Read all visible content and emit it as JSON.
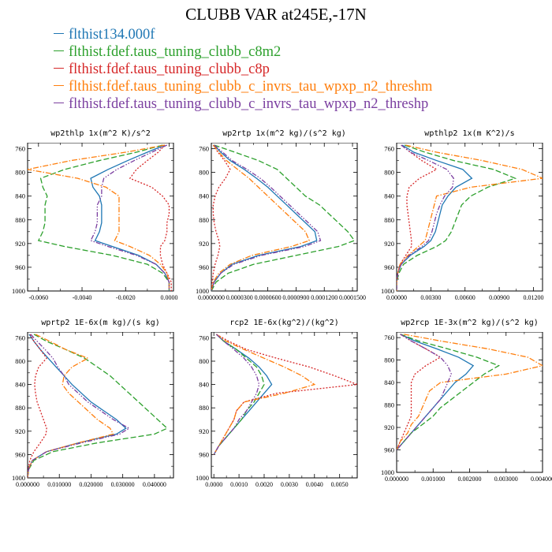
{
  "figure": {
    "title": "CLUBB VAR at245E,-17N"
  },
  "legend": [
    {
      "label": "flthist134.000f",
      "color": "#1f77b4",
      "dash": "solid"
    },
    {
      "label": "flthist.fdef.taus_tuning_clubb_c8m2",
      "color": "#2ca02c",
      "dash": "dashed"
    },
    {
      "label": "flthist.fdef.taus_tuning_clubb_c8p",
      "color": "#d62728",
      "dash": "dotted"
    },
    {
      "label": "flthist.fdef.taus_tuning_clubb_c_invrs_tau_wpxp_n2_threshm",
      "color": "#ff7f0e",
      "dash": "dashdot"
    },
    {
      "label": "flthist.fdef.taus_tuning_clubb_c_invrs_tau_wpxp_n2_threshp",
      "color": "#7b3fa0",
      "dash": "dashdot2"
    }
  ],
  "chart_data": [
    {
      "type": "line",
      "title": "wp2thlp  1x(m^2 K)/s^2",
      "xlim": [
        -0.0065,
        0.0002
      ],
      "xticks": [
        -0.006,
        -0.004,
        -0.002,
        0.0
      ],
      "xtick_labels": [
        "-0.0060",
        "-0.0040",
        "-0.0020",
        "0.0000"
      ],
      "ylim": [
        1000,
        750
      ],
      "yticks": [
        760,
        800,
        840,
        880,
        920,
        960,
        1000
      ],
      "ytick_labels": [
        "760",
        "800",
        "840",
        "880",
        "920",
        "960",
        "1000"
      ],
      "y": [
        754,
        766,
        780,
        795,
        810,
        825,
        840,
        855,
        870,
        885,
        900,
        915,
        925,
        940,
        955,
        970,
        985,
        1000
      ],
      "series": [
        {
          "name": "flthist134.000f",
          "values": [
            -0.0002,
            -0.001,
            -0.0019,
            -0.0028,
            -0.0036,
            -0.0035,
            -0.0032,
            -0.0031,
            -0.0031,
            -0.0031,
            -0.0032,
            -0.0034,
            -0.0026,
            -0.0014,
            -0.0006,
            -0.0002,
            0.0,
            0.0
          ]
        },
        {
          "name": "flthist.fdef.taus_tuning_clubb_c8m2",
          "values": [
            -0.0003,
            -0.0015,
            -0.0032,
            -0.0048,
            -0.0059,
            -0.0058,
            -0.0056,
            -0.0057,
            -0.0057,
            -0.0057,
            -0.0058,
            -0.006,
            -0.0048,
            -0.0026,
            -0.001,
            -0.0003,
            0.0,
            0.0
          ]
        },
        {
          "name": "flthist.fdef.taus_tuning_clubb_c8p",
          "values": [
            -0.0002,
            -0.0005,
            -0.001,
            -0.0015,
            -0.0018,
            -0.0008,
            -0.0003,
            0.0,
            0.0,
            -0.0001,
            -0.0001,
            -0.0002,
            -0.0004,
            -0.0004,
            -0.0003,
            -0.0001,
            0.0001,
            0.0001
          ]
        },
        {
          "name": "flthist.fdef.taus_tuning_clubb_c_invrs_tau_wpxp_n2_threshm",
          "values": [
            -0.0002,
            -0.002,
            -0.0045,
            -0.0065,
            -0.0042,
            -0.0029,
            -0.0023,
            -0.0023,
            -0.0023,
            -0.0023,
            -0.0023,
            -0.0025,
            -0.0018,
            -0.0009,
            -0.0004,
            -0.0001,
            0.0,
            0.0
          ]
        },
        {
          "name": "flthist.fdef.taus_tuning_clubb_c_invrs_tau_wpxp_n2_threshp",
          "values": [
            -0.0001,
            -0.0008,
            -0.0016,
            -0.0024,
            -0.003,
            -0.0031,
            -0.0031,
            -0.0033,
            -0.0033,
            -0.0033,
            -0.0034,
            -0.0036,
            -0.0028,
            -0.0015,
            -0.0006,
            -0.0002,
            0.0,
            0.0
          ]
        }
      ]
    },
    {
      "type": "line",
      "title": "wp2rtp  1x(m^2 kg)/(s^2 kg)",
      "xlim": [
        0.0,
        0.000155
      ],
      "xticks": [
        0.0,
        3e-05,
        6e-05,
        9e-05,
        0.00012,
        0.00015
      ],
      "xtick_labels": [
        "0.0000000",
        "0.0000300",
        "0.0000600",
        "0.0000900",
        "0.0001200",
        "0.0001500"
      ],
      "ylim": [
        1000,
        750
      ],
      "yticks": [
        760,
        800,
        840,
        880,
        920,
        960,
        1000
      ],
      "ytick_labels": [
        "760",
        "800",
        "840",
        "880",
        "920",
        "960",
        "1000"
      ],
      "y": [
        754,
        766,
        780,
        795,
        810,
        825,
        840,
        855,
        870,
        885,
        900,
        915,
        925,
        940,
        955,
        970,
        985,
        1000
      ],
      "series": [
        {
          "name": "flthist134.000f",
          "values": [
            3e-06,
            1e-05,
            2e-05,
            3.5e-05,
            4.8e-05,
            6e-05,
            7e-05,
            8e-05,
            9e-05,
            0.0001,
            0.00011,
            0.000112,
            9.5e-05,
            5e-05,
            2.2e-05,
            1e-05,
            3e-06,
            0.0
          ]
        },
        {
          "name": "flthist.fdef.taus_tuning_clubb_c8m2",
          "values": [
            3e-06,
            2.5e-05,
            5e-05,
            7e-05,
            8e-05,
            9e-05,
            0.0001,
            0.000115,
            0.000125,
            0.000135,
            0.000145,
            0.000152,
            0.000135,
            9e-05,
            4.5e-05,
            1.8e-05,
            5e-06,
            0.0
          ]
        },
        {
          "name": "flthist.fdef.taus_tuning_clubb_c8p",
          "values": [
            2e-06,
            7e-06,
            1.4e-05,
            2e-05,
            1.5e-05,
            8e-06,
            4e-06,
            2e-06,
            2e-06,
            3e-06,
            5e-06,
            8e-06,
            9e-06,
            7e-06,
            4e-06,
            2e-06,
            1e-06,
            0.0
          ]
        },
        {
          "name": "flthist.fdef.taus_tuning_clubb_c_invrs_tau_wpxp_n2_threshm",
          "values": [
            2e-06,
            8e-06,
            1.6e-05,
            2.8e-05,
            4e-05,
            5e-05,
            6e-05,
            7e-05,
            8e-05,
            9e-05,
            0.0001,
            0.000104,
            8.5e-05,
            4.3e-05,
            2e-05,
            8e-06,
            2e-06,
            0.0
          ]
        },
        {
          "name": "flthist.fdef.taus_tuning_clubb_c_invrs_tau_wpxp_n2_threshp",
          "values": [
            3e-06,
            1.2e-05,
            2.2e-05,
            3.8e-05,
            5.2e-05,
            6.3e-05,
            7.3e-05,
            8.3e-05,
            9.3e-05,
            0.000103,
            0.000113,
            0.000116,
            9.9e-05,
            5.3e-05,
            2.4e-05,
            1e-05,
            3e-06,
            0.0
          ]
        }
      ]
    },
    {
      "type": "line",
      "title": "wpthlp2  1x(m K^2)/s",
      "xlim": [
        0.0,
        0.0128
      ],
      "xticks": [
        0.0,
        0.003,
        0.006,
        0.009,
        0.012
      ],
      "xtick_labels": [
        "0.00000",
        "0.00300",
        "0.00600",
        "0.00900",
        "0.01200"
      ],
      "ylim": [
        1000,
        750
      ],
      "yticks": [
        760,
        800,
        840,
        880,
        920,
        960,
        1000
      ],
      "ytick_labels": [
        "760",
        "800",
        "840",
        "880",
        "920",
        "960",
        "1000"
      ],
      "y": [
        754,
        766,
        780,
        795,
        810,
        825,
        840,
        855,
        870,
        885,
        900,
        915,
        925,
        940,
        955,
        970,
        985,
        1000
      ],
      "series": [
        {
          "name": "flthist134.000f",
          "values": [
            0.0005,
            0.0015,
            0.0035,
            0.0058,
            0.0066,
            0.0052,
            0.0045,
            0.004,
            0.0038,
            0.0036,
            0.0034,
            0.003,
            0.0024,
            0.0012,
            0.0004,
            0.0001,
            0.0,
            0.0
          ]
        },
        {
          "name": "flthist.fdef.taus_tuning_clubb_c8m2",
          "values": [
            0.0007,
            0.0025,
            0.005,
            0.0085,
            0.0104,
            0.008,
            0.0065,
            0.0057,
            0.0054,
            0.0051,
            0.0048,
            0.0043,
            0.0035,
            0.0018,
            0.0006,
            0.0002,
            0.0,
            0.0
          ]
        },
        {
          "name": "flthist.fdef.taus_tuning_clubb_c8p",
          "values": [
            0.0004,
            0.0012,
            0.0022,
            0.0035,
            0.002,
            0.0011,
            0.0009,
            0.0009,
            0.001,
            0.0011,
            0.0012,
            0.0013,
            0.0013,
            0.0008,
            0.0003,
            0.0001,
            0.0,
            0.0
          ]
        },
        {
          "name": "flthist.fdef.taus_tuning_clubb_c_invrs_tau_wpxp_n2_threshm",
          "values": [
            0.0008,
            0.0035,
            0.0075,
            0.011,
            0.0128,
            0.0065,
            0.0035,
            0.0033,
            0.0031,
            0.0029,
            0.0027,
            0.0025,
            0.0019,
            0.001,
            0.0003,
            0.0001,
            0.0,
            0.0
          ]
        },
        {
          "name": "flthist.fdef.taus_tuning_clubb_c_invrs_tau_wpxp_n2_threshp",
          "values": [
            0.0004,
            0.0012,
            0.0028,
            0.0044,
            0.005,
            0.0049,
            0.0042,
            0.0038,
            0.0035,
            0.0033,
            0.0031,
            0.0028,
            0.0022,
            0.0011,
            0.0004,
            0.0001,
            0.0,
            0.0
          ]
        }
      ]
    },
    {
      "type": "line",
      "title": "wprtp2  1E-6x(m kg)/(s kg)",
      "xlim": [
        0.0,
        0.046
      ],
      "xticks": [
        0.0,
        0.01,
        0.02,
        0.03,
        0.04
      ],
      "xtick_labels": [
        "0.000000",
        "0.010000",
        "0.020000",
        "0.030000",
        "0.040000"
      ],
      "ylim": [
        1000,
        750
      ],
      "yticks": [
        760,
        800,
        840,
        880,
        920,
        960,
        1000
      ],
      "ytick_labels": [
        "760",
        "800",
        "840",
        "880",
        "920",
        "960",
        "1000"
      ],
      "y": [
        754,
        766,
        780,
        795,
        810,
        825,
        840,
        855,
        870,
        885,
        900,
        915,
        925,
        940,
        955,
        970,
        985,
        1000
      ],
      "series": [
        {
          "name": "flthist134.000f",
          "values": [
            0.0005,
            0.002,
            0.004,
            0.0065,
            0.009,
            0.0115,
            0.014,
            0.017,
            0.02,
            0.024,
            0.028,
            0.031,
            0.028,
            0.016,
            0.006,
            0.0015,
            0.0003,
            0.0
          ]
        },
        {
          "name": "flthist.fdef.taus_tuning_clubb_c8m2",
          "values": [
            0.002,
            0.006,
            0.012,
            0.018,
            0.022,
            0.026,
            0.029,
            0.032,
            0.035,
            0.038,
            0.041,
            0.044,
            0.04,
            0.022,
            0.008,
            0.002,
            0.0004,
            0.0
          ]
        },
        {
          "name": "flthist.fdef.taus_tuning_clubb_c8p",
          "values": [
            0.0008,
            0.002,
            0.004,
            0.006,
            0.0035,
            0.0025,
            0.0022,
            0.0025,
            0.003,
            0.004,
            0.005,
            0.006,
            0.0058,
            0.004,
            0.002,
            0.0007,
            0.0002,
            0.0
          ]
        },
        {
          "name": "flthist.fdef.taus_tuning_clubb_c_invrs_tau_wpxp_n2_threshm",
          "values": [
            0.0025,
            0.007,
            0.012,
            0.019,
            0.014,
            0.0115,
            0.011,
            0.013,
            0.016,
            0.019,
            0.022,
            0.026,
            0.027,
            0.016,
            0.006,
            0.0015,
            0.0003,
            0.0
          ]
        },
        {
          "name": "flthist.fdef.taus_tuning_clubb_c_invrs_tau_wpxp_n2_threshp",
          "values": [
            0.001,
            0.003,
            0.0055,
            0.008,
            0.0095,
            0.0115,
            0.013,
            0.016,
            0.019,
            0.023,
            0.027,
            0.032,
            0.029,
            0.017,
            0.006,
            0.0015,
            0.0003,
            0.0
          ]
        }
      ]
    },
    {
      "type": "line",
      "title": "rcp2  1E-6x(kg^2)/(kg^2)",
      "xlim": [
        -0.0001,
        0.0057
      ],
      "xticks": [
        0.0,
        0.001,
        0.002,
        0.003,
        0.004,
        0.005
      ],
      "xtick_labels": [
        "0.0000",
        "0.0010",
        "0.0020",
        "0.0030",
        "0.0040",
        "0.0050"
      ],
      "ylim": [
        1000,
        750
      ],
      "yticks": [
        760,
        800,
        840,
        880,
        920,
        960,
        1000
      ],
      "ytick_labels": [
        "760",
        "800",
        "840",
        "880",
        "920",
        "960",
        "1000"
      ],
      "y": [
        754,
        766,
        780,
        795,
        810,
        825,
        840,
        855,
        870,
        885,
        900,
        915,
        930,
        945,
        960
      ],
      "series": [
        {
          "name": "flthist134.000f",
          "values": [
            0.0001,
            0.0004,
            0.0009,
            0.0014,
            0.0018,
            0.0021,
            0.0023,
            0.002,
            0.0017,
            0.0014,
            0.0011,
            0.0008,
            0.0005,
            0.0002,
            0.0
          ]
        },
        {
          "name": "flthist.fdef.taus_tuning_clubb_c8m2",
          "values": [
            0.0001,
            0.0004,
            0.0009,
            0.0013,
            0.0017,
            0.0019,
            0.002,
            0.0018,
            0.0016,
            0.0013,
            0.0011,
            0.0008,
            0.0005,
            0.0002,
            0.0
          ]
        },
        {
          "name": "flthist.fdef.taus_tuning_clubb_c8p",
          "values": [
            0.0001,
            0.0006,
            0.0013,
            0.0025,
            0.0038,
            0.0048,
            0.0057,
            0.0025,
            0.0012,
            0.0009,
            0.0008,
            0.0006,
            0.0004,
            0.0002,
            0.0
          ]
        },
        {
          "name": "flthist.fdef.taus_tuning_clubb_c_invrs_tau_wpxp_n2_threshm",
          "values": [
            0.0001,
            0.0005,
            0.0012,
            0.002,
            0.0028,
            0.0035,
            0.004,
            0.0028,
            0.0012,
            0.0009,
            0.0008,
            0.0006,
            0.0004,
            0.0002,
            0.0
          ]
        },
        {
          "name": "flthist.fdef.taus_tuning_clubb_c_invrs_tau_wpxp_n2_threshp",
          "values": [
            0.0001,
            0.0004,
            0.0008,
            0.0012,
            0.0015,
            0.0017,
            0.0018,
            0.0017,
            0.0015,
            0.0013,
            0.001,
            0.0008,
            0.0005,
            0.0002,
            0.0
          ]
        }
      ]
    },
    {
      "type": "line",
      "title": "wp2rcp  1E-3x(m^2 kg)/(s^2 kg)",
      "xlim": [
        0.0,
        0.004
      ],
      "xticks": [
        0.0,
        0.001,
        0.002,
        0.003,
        0.004
      ],
      "xtick_labels": [
        "0.000000",
        "0.001000",
        "0.002000",
        "0.003000",
        "0.004000"
      ],
      "ylim": [
        1000,
        750
      ],
      "yticks": [
        760,
        800,
        840,
        880,
        920,
        960,
        1000
      ],
      "ytick_labels": [
        "760",
        "800",
        "840",
        "880",
        "920",
        "960",
        "1000"
      ],
      "y": [
        754,
        766,
        780,
        795,
        810,
        825,
        840,
        855,
        870,
        885,
        900,
        915,
        930,
        945,
        960
      ],
      "series": [
        {
          "name": "flthist134.000f",
          "values": [
            0.0001,
            0.0005,
            0.0011,
            0.0017,
            0.0021,
            0.0019,
            0.0016,
            0.0014,
            0.0012,
            0.001,
            0.0008,
            0.0006,
            0.0004,
            0.0002,
            0.0
          ]
        },
        {
          "name": "flthist.fdef.taus_tuning_clubb_c8m2",
          "values": [
            0.0001,
            0.0006,
            0.0014,
            0.0022,
            0.0028,
            0.0024,
            0.0021,
            0.0018,
            0.0015,
            0.0012,
            0.001,
            0.0007,
            0.0004,
            0.0002,
            0.0
          ]
        },
        {
          "name": "flthist.fdef.taus_tuning_clubb_c8p",
          "values": [
            0.0001,
            0.0004,
            0.0008,
            0.0012,
            0.0008,
            0.0005,
            0.0004,
            0.0004,
            0.0004,
            0.0004,
            0.0004,
            0.0003,
            0.0002,
            0.0001,
            0.0
          ]
        },
        {
          "name": "flthist.fdef.taus_tuning_clubb_c_invrs_tau_wpxp_n2_threshm",
          "values": [
            0.0002,
            0.0012,
            0.0025,
            0.0036,
            0.004,
            0.003,
            0.0012,
            0.0009,
            0.0008,
            0.0007,
            0.0006,
            0.0004,
            0.0003,
            0.0001,
            0.0
          ]
        },
        {
          "name": "flthist.fdef.taus_tuning_clubb_c_invrs_tau_wpxp_n2_threshp",
          "values": [
            0.0001,
            0.0004,
            0.0008,
            0.0012,
            0.0014,
            0.0015,
            0.0014,
            0.0013,
            0.0012,
            0.001,
            0.0008,
            0.0006,
            0.0004,
            0.0002,
            0.0
          ]
        }
      ]
    }
  ]
}
